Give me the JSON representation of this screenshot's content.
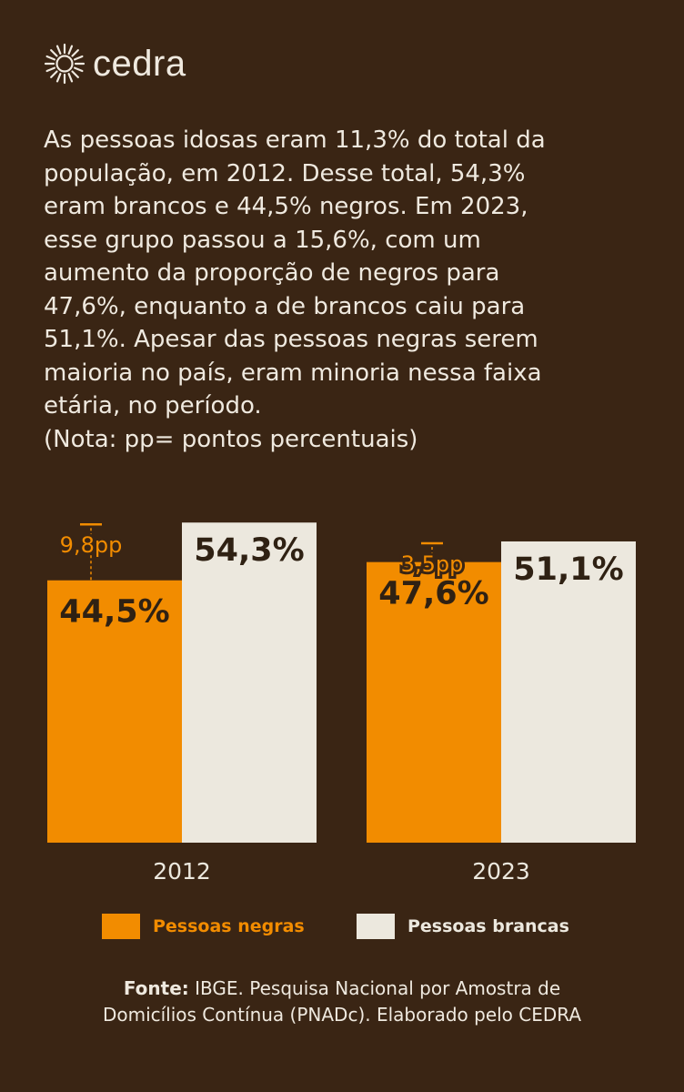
{
  "brand": {
    "name": "cedra",
    "icon": "sun-burst-icon"
  },
  "intro_lines": [
    "As pessoas idosas eram 11,3% do total da",
    "população, em 2012. Desse total, 54,3%",
    "eram brancos e 44,5% negros. Em 2023,",
    "esse grupo passou a 15,6%, com um",
    "aumento da proporção de negros para",
    "47,6%, enquanto a de brancos caiu para",
    "51,1%. Apesar das pessoas negras serem",
    "maioria no país, eram minoria nessa faixa",
    "etária, no período.",
    "(Nota: pp= pontos percentuais)"
  ],
  "chart_data": {
    "type": "bar",
    "categories": [
      "2012",
      "2023"
    ],
    "series": [
      {
        "name": "Pessoas negras",
        "values": [
          44.5,
          47.6
        ],
        "labels": [
          "44,5%",
          "47,6%"
        ],
        "color": "#f28c00"
      },
      {
        "name": "Pessoas brancas",
        "values": [
          54.3,
          51.1
        ],
        "labels": [
          "54,3%",
          "51,1%"
        ],
        "color": "#ece8de"
      }
    ],
    "gaps": [
      {
        "category": "2012",
        "value": 9.8,
        "label": "9,8pp"
      },
      {
        "category": "2023",
        "value": 3.5,
        "label": "3,5pp"
      }
    ],
    "legend_position": "bottom"
  },
  "legend": [
    {
      "label": "Pessoas negras",
      "color": "#f28c00"
    },
    {
      "label": "Pessoas brancas",
      "color": "#ece8de"
    }
  ],
  "source": {
    "prefix": "Fonte:",
    "line1": "IBGE. Pesquisa Nacional por Amostra de",
    "line2": "Domicílios Contínua (PNADc). Elaborado pelo CEDRA"
  },
  "colors": {
    "background": "#3a2514",
    "accent": "#f28c00",
    "light": "#ece8de",
    "dark_text": "#2f2113"
  }
}
